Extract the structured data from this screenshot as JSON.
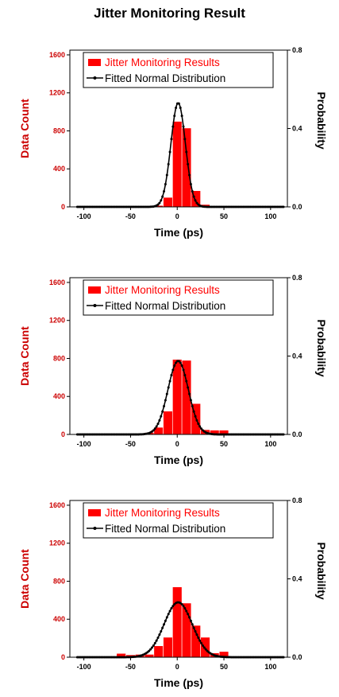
{
  "title": "Jitter Monitoring Result",
  "colors": {
    "bar": "#ff0000",
    "fit": "#000000",
    "left_axis": "#cc0000",
    "right_axis": "#000000"
  },
  "chart_data": [
    {
      "type": "bar",
      "overlay": "line",
      "xlabel": "Time (ps)",
      "ylabel": "Data Count",
      "y2label": "Probability",
      "xlim": [
        -115,
        118
      ],
      "ylim": [
        0,
        1650
      ],
      "y2lim": [
        0,
        0.8
      ],
      "xticks": [
        -100,
        -50,
        0,
        50,
        100
      ],
      "yticks": [
        0,
        400,
        800,
        1200,
        1600
      ],
      "y2ticks": [
        "0.0",
        "0.4",
        "0.8"
      ],
      "legend": {
        "position": "top",
        "entries": [
          "Jitter Monitoring Results",
          "Fitted Normal Distribution"
        ]
      },
      "bar_width": 10,
      "series": [
        {
          "name": "Jitter Monitoring Results",
          "axis": "left",
          "x": [
            -30,
            -20,
            -10,
            0,
            10,
            20,
            30
          ],
          "values": [
            5,
            15,
            100,
            900,
            830,
            170,
            25
          ]
        },
        {
          "name": "Fitted Normal Distribution",
          "axis": "right",
          "fit": {
            "mean": 1,
            "sigma": 7.8,
            "peak": 0.53
          }
        }
      ]
    },
    {
      "type": "bar",
      "overlay": "line",
      "xlabel": "Time (ps)",
      "ylabel": "Data Count",
      "y2label": "Probability",
      "xlim": [
        -115,
        118
      ],
      "ylim": [
        0,
        1650
      ],
      "y2lim": [
        0,
        0.8
      ],
      "xticks": [
        -100,
        -50,
        0,
        50,
        100
      ],
      "yticks": [
        0,
        400,
        800,
        1200,
        1600
      ],
      "y2ticks": [
        "0.0",
        "0.4",
        "0.8"
      ],
      "legend": {
        "position": "top",
        "entries": [
          "Jitter Monitoring Results",
          "Fitted Normal Distribution"
        ]
      },
      "bar_width": 10,
      "series": [
        {
          "name": "Jitter Monitoring Results",
          "axis": "left",
          "x": [
            -40,
            -30,
            -20,
            -10,
            0,
            10,
            20,
            30,
            40,
            50
          ],
          "values": [
            5,
            20,
            75,
            245,
            790,
            780,
            325,
            50,
            45,
            45
          ]
        },
        {
          "name": "Fitted Normal Distribution",
          "axis": "right",
          "fit": {
            "mean": 1,
            "sigma": 11,
            "peak": 0.375
          }
        }
      ]
    },
    {
      "type": "bar",
      "overlay": "line",
      "xlabel": "Time (ps)",
      "ylabel": "Data Count",
      "y2label": "Probability",
      "xlim": [
        -115,
        118
      ],
      "ylim": [
        0,
        1650
      ],
      "y2lim": [
        0,
        0.8
      ],
      "xticks": [
        -100,
        -50,
        0,
        50,
        100
      ],
      "yticks": [
        0,
        400,
        800,
        1200,
        1600
      ],
      "y2ticks": [
        "0.0",
        "0.4",
        "0.8"
      ],
      "legend": {
        "position": "top",
        "entries": [
          "Jitter Monitoring Results",
          "Fitted Normal Distribution"
        ]
      },
      "bar_width": 10,
      "series": [
        {
          "name": "Jitter Monitoring Results",
          "axis": "left",
          "x": [
            -60,
            -50,
            -40,
            -30,
            -20,
            -10,
            0,
            10,
            20,
            30,
            40,
            50
          ],
          "values": [
            40,
            25,
            30,
            30,
            120,
            210,
            740,
            570,
            335,
            210,
            45,
            60
          ]
        },
        {
          "name": "Fitted Normal Distribution",
          "axis": "right",
          "fit": {
            "mean": 1,
            "sigma": 15,
            "peak": 0.28
          }
        }
      ]
    }
  ]
}
